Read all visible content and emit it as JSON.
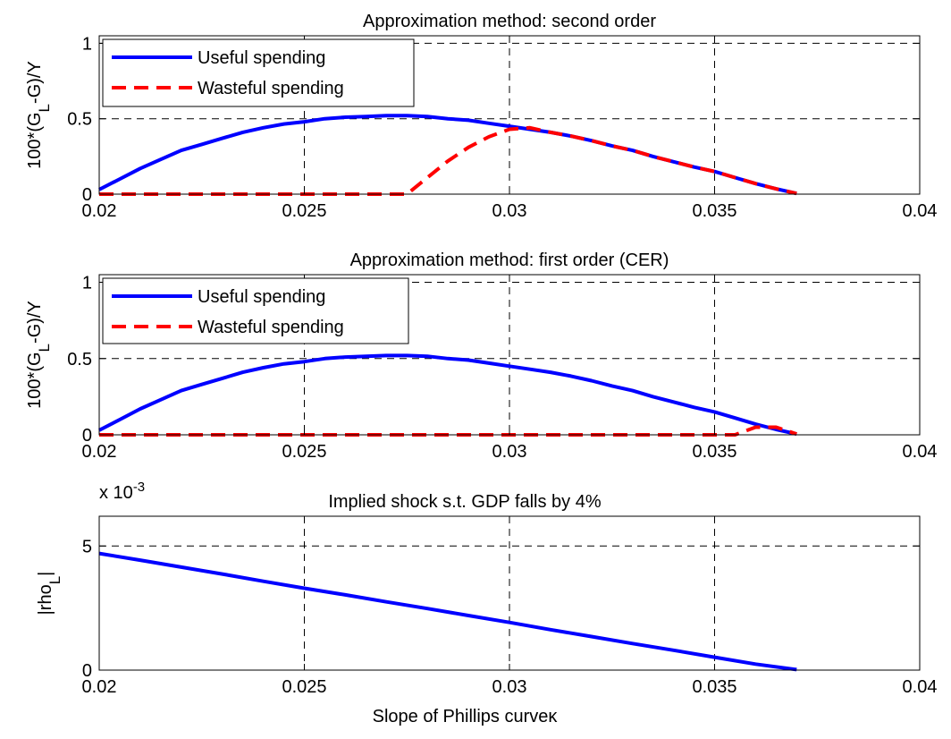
{
  "chart_data": [
    {
      "type": "line",
      "title": "Approximation method: second order",
      "xlabel": "",
      "ylabel": "100*(G_L-G)/Y",
      "xlim": [
        0.02,
        0.04
      ],
      "ylim": [
        0,
        1.05
      ],
      "xticks": [
        "0.02",
        "0.025",
        "0.03",
        "0.035",
        "0.04"
      ],
      "yticks": [
        "0",
        "0.5",
        "1"
      ],
      "grid": true,
      "legend": "top-left",
      "series": [
        {
          "name": "Useful spending",
          "color": "#0000ff",
          "dash": "solid",
          "x": [
            0.02,
            0.0205,
            0.021,
            0.0215,
            0.022,
            0.0225,
            0.023,
            0.0235,
            0.024,
            0.0245,
            0.025,
            0.0255,
            0.026,
            0.0265,
            0.027,
            0.0275,
            0.028,
            0.0285,
            0.029,
            0.0295,
            0.03,
            0.0305,
            0.031,
            0.0315,
            0.032,
            0.0325,
            0.033,
            0.0335,
            0.034,
            0.0345,
            0.035,
            0.0355,
            0.036,
            0.0365,
            0.037
          ],
          "y": [
            0.03,
            0.1,
            0.17,
            0.23,
            0.29,
            0.33,
            0.37,
            0.41,
            0.44,
            0.465,
            0.48,
            0.5,
            0.51,
            0.515,
            0.52,
            0.52,
            0.515,
            0.5,
            0.49,
            0.47,
            0.45,
            0.43,
            0.41,
            0.385,
            0.355,
            0.32,
            0.29,
            0.25,
            0.215,
            0.18,
            0.15,
            0.11,
            0.07,
            0.035,
            0.005
          ]
        },
        {
          "name": "Wasteful spending",
          "color": "#ff0000",
          "dash": "dashed",
          "x": [
            0.02,
            0.0205,
            0.021,
            0.0215,
            0.022,
            0.0225,
            0.023,
            0.0235,
            0.024,
            0.0245,
            0.025,
            0.0255,
            0.026,
            0.0265,
            0.027,
            0.0275,
            0.028,
            0.0285,
            0.029,
            0.0295,
            0.03,
            0.0305,
            0.031,
            0.0315,
            0.032,
            0.0325,
            0.033,
            0.0335,
            0.034,
            0.0345,
            0.035,
            0.0355,
            0.036,
            0.0365,
            0.037
          ],
          "y": [
            0,
            0,
            0,
            0,
            0,
            0,
            0,
            0,
            0,
            0,
            0,
            0,
            0,
            0,
            0,
            0,
            0.11,
            0.22,
            0.31,
            0.38,
            0.43,
            0.44,
            0.41,
            0.385,
            0.355,
            0.32,
            0.29,
            0.25,
            0.215,
            0.18,
            0.15,
            0.11,
            0.07,
            0.035,
            0.005
          ]
        }
      ]
    },
    {
      "type": "line",
      "title": "Approximation method: first order (CER)",
      "xlabel": "",
      "ylabel": "100*(G_L-G)/Y",
      "xlim": [
        0.02,
        0.04
      ],
      "ylim": [
        0,
        1.05
      ],
      "xticks": [
        "0.02",
        "0.025",
        "0.03",
        "0.035",
        "0.04"
      ],
      "yticks": [
        "0",
        "0.5",
        "1"
      ],
      "grid": true,
      "legend": "top-left",
      "series": [
        {
          "name": "Useful spending",
          "color": "#0000ff",
          "dash": "solid",
          "x": [
            0.02,
            0.0205,
            0.021,
            0.0215,
            0.022,
            0.0225,
            0.023,
            0.0235,
            0.024,
            0.0245,
            0.025,
            0.0255,
            0.026,
            0.0265,
            0.027,
            0.0275,
            0.028,
            0.0285,
            0.029,
            0.0295,
            0.03,
            0.0305,
            0.031,
            0.0315,
            0.032,
            0.0325,
            0.033,
            0.0335,
            0.034,
            0.0345,
            0.035,
            0.0355,
            0.036,
            0.0365,
            0.037
          ],
          "y": [
            0.03,
            0.1,
            0.17,
            0.23,
            0.29,
            0.33,
            0.37,
            0.41,
            0.44,
            0.465,
            0.48,
            0.5,
            0.51,
            0.515,
            0.52,
            0.52,
            0.515,
            0.5,
            0.49,
            0.47,
            0.45,
            0.43,
            0.41,
            0.385,
            0.355,
            0.32,
            0.29,
            0.25,
            0.215,
            0.18,
            0.15,
            0.11,
            0.07,
            0.035,
            0.005
          ]
        },
        {
          "name": "Wasteful spending",
          "color": "#ff0000",
          "dash": "dashed",
          "x": [
            0.02,
            0.021,
            0.022,
            0.023,
            0.024,
            0.025,
            0.026,
            0.027,
            0.028,
            0.029,
            0.03,
            0.031,
            0.032,
            0.033,
            0.034,
            0.035,
            0.0355,
            0.036,
            0.0365,
            0.037
          ],
          "y": [
            0,
            0,
            0,
            0,
            0,
            0,
            0,
            0,
            0,
            0,
            0,
            0,
            0,
            0,
            0,
            0,
            0,
            0.05,
            0.05,
            0.005
          ]
        }
      ]
    },
    {
      "type": "line",
      "title": "Implied shock s.t. GDP falls by 4%",
      "xlabel": "Slope of Phillips curveκ",
      "ylabel": "|rho_L|",
      "scale_label": "x 10^-3",
      "xlim": [
        0.02,
        0.04
      ],
      "ylim": [
        0,
        6.2
      ],
      "xticks": [
        "0.02",
        "0.025",
        "0.03",
        "0.035",
        "0.04"
      ],
      "yticks": [
        "0",
        "5"
      ],
      "grid": true,
      "series": [
        {
          "color": "#0000ff",
          "dash": "solid",
          "x": [
            0.02,
            0.021,
            0.022,
            0.023,
            0.024,
            0.025,
            0.026,
            0.027,
            0.028,
            0.029,
            0.03,
            0.031,
            0.032,
            0.033,
            0.034,
            0.035,
            0.036,
            0.037
          ],
          "y": [
            4.7,
            4.43,
            4.15,
            3.87,
            3.58,
            3.3,
            3.03,
            2.75,
            2.48,
            2.2,
            1.92,
            1.63,
            1.35,
            1.07,
            0.8,
            0.52,
            0.24,
            0.02
          ]
        }
      ]
    }
  ]
}
